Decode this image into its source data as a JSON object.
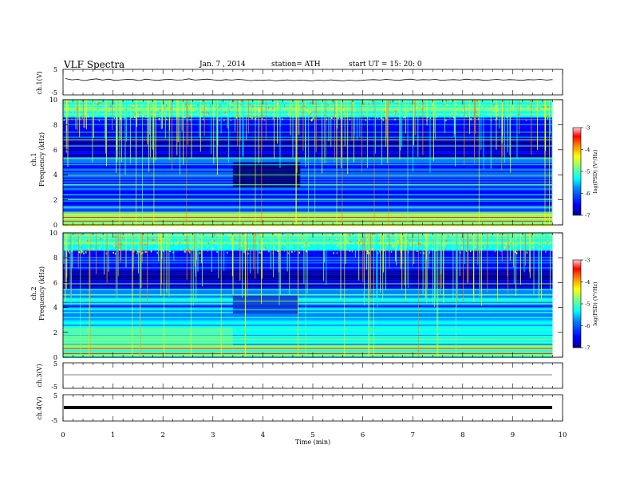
{
  "header": {
    "title": "VLF  Spectra",
    "date": "Jan. 7  , 2014",
    "station": "station= ATH",
    "start": "start  UT  =    15: 20: 0"
  },
  "chart_data": [
    {
      "type": "line",
      "name": "ch1-waveform",
      "ylabel": "ch.1(V)",
      "ylim": [
        -5,
        5
      ],
      "yticks": [
        "5",
        "-5"
      ],
      "xlim": [
        0,
        10
      ],
      "samples": [
        1.4,
        0.9,
        1.1,
        0.6,
        1.0,
        1.3,
        0.8,
        1.2,
        0.7,
        0.9,
        1.1,
        1.0,
        0.6,
        1.2,
        0.9,
        0.7,
        1.0,
        1.1,
        0.8,
        0.9,
        1.3,
        0.8,
        1.0,
        1.2,
        0.9,
        0.7,
        1.0,
        0.8,
        1.1,
        0.9,
        0.6,
        0.8,
        0.7,
        0.9,
        0.5,
        0.7,
        0.9,
        0.6,
        0.8,
        0.7,
        0.5,
        0.8,
        0.6,
        0.9,
        0.7,
        0.5,
        0.8,
        0.6,
        0.7,
        0.9,
        1.0,
        0.8,
        1.1,
        0.9,
        0.7,
        1.0,
        1.2,
        0.8,
        1.0,
        0.9,
        1.1,
        0.7,
        0.9,
        1.0,
        0.8,
        1.2,
        0.9,
        1.0,
        0.7,
        0.9,
        1.1,
        0.8,
        1.0,
        0.9,
        0.7,
        1.0,
        0.9,
        1.1,
        0.8,
        1.0
      ]
    },
    {
      "type": "heatmap",
      "name": "ch1-spectrogram",
      "ylabel": "ch.1\nFrequency  (kHz)",
      "xlim": [
        0,
        9.8
      ],
      "ylim": [
        0,
        10
      ],
      "yticks": [
        "0",
        "2",
        "4",
        "6",
        "8",
        "10"
      ],
      "colorbar": {
        "label": "log(PSD) (V²/Hz)",
        "range": [
          -7,
          -3
        ],
        "ticks": [
          "-7",
          "-6",
          "-5",
          "-4",
          "-3"
        ]
      },
      "quiet_period_min": [
        3.4,
        4.75
      ],
      "quiet_band_khz": [
        3,
        5
      ]
    },
    {
      "type": "heatmap",
      "name": "ch2-spectrogram",
      "ylabel": "ch.2\nFrequency  (kHz)",
      "xlim": [
        0,
        9.8
      ],
      "ylim": [
        0,
        10
      ],
      "yticks": [
        "0",
        "2",
        "4",
        "6",
        "8",
        "10"
      ],
      "colorbar": {
        "label": "log(PSD) (V²/Hz)",
        "range": [
          -7,
          -3
        ],
        "ticks": [
          "-7",
          "-6",
          "-5",
          "-4",
          "-3"
        ]
      },
      "quiet_period_min": [
        3.4,
        4.7
      ],
      "quiet_band_khz": [
        3.5,
        5
      ]
    },
    {
      "type": "line",
      "name": "ch3-waveform",
      "ylabel": "ch.3(V)",
      "ylim": [
        -5,
        5
      ],
      "yticks": [
        "5",
        "-5"
      ],
      "level": 0
    },
    {
      "type": "line",
      "name": "ch4-waveform",
      "ylabel": "ch.4(V)",
      "ylim": [
        -5,
        5
      ],
      "yticks": [
        "5",
        "-5"
      ],
      "level": 0
    }
  ],
  "xaxis": {
    "label": "Time  (min)",
    "range": [
      0,
      10
    ],
    "ticks": [
      "0",
      "1",
      "2",
      "3",
      "4",
      "5",
      "6",
      "7",
      "8",
      "9",
      "10"
    ]
  },
  "colors": {
    "jet": [
      "#00008f",
      "#0000ff",
      "#0080ff",
      "#00ffff",
      "#80ff80",
      "#ffff00",
      "#ff8000",
      "#ff0000",
      "#ffc0c0"
    ]
  }
}
